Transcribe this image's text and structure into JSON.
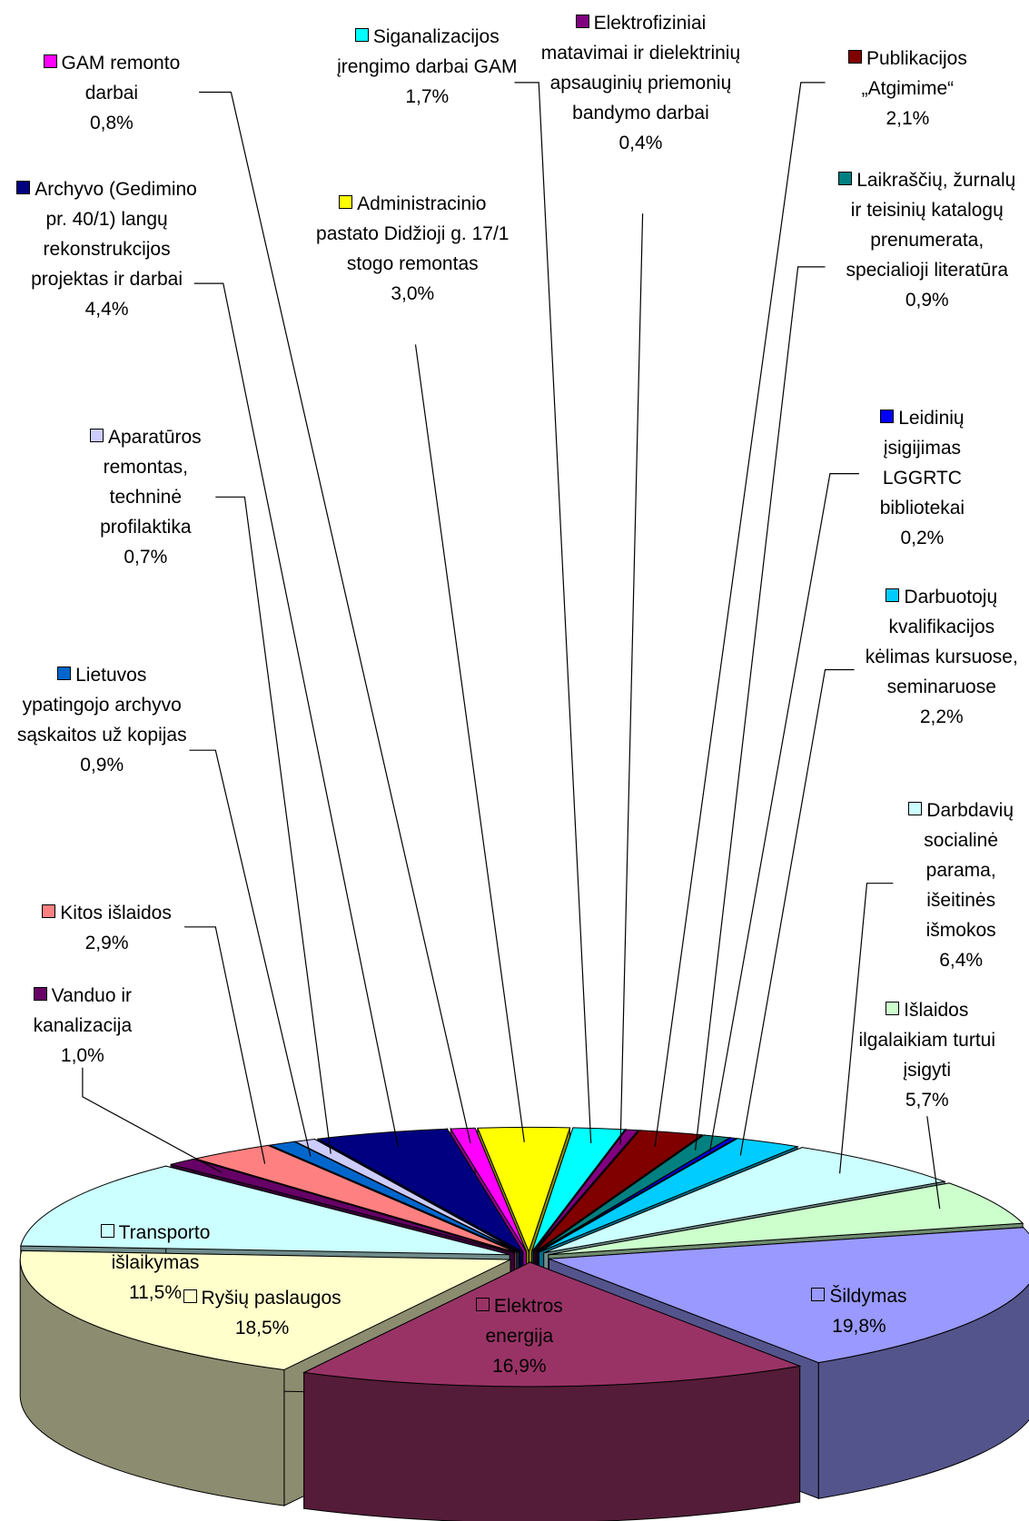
{
  "chart_data": {
    "type": "pie",
    "categories": [
      "Administracinio pastato Didžioji g. 17/1 stogo remontas",
      "Siganalizacijos įrengimo darbai GAM",
      "Elektrofiziniai matavimai ir dielektrinių apsauginių priemonių bandymo darbai",
      "Publikacijos „Atgimime“",
      "Laikraščių, žurnalų ir teisinių katalogų prenumerata, specialioji literatūra",
      "Leidinių įsigijimas LGGRTC bibliotekai",
      "Darbuotojų kvalifikacijos kėlimas kursuose, seminaruose",
      "Darbdavių socialinė parama, išeitinės išmokos",
      "Išlaidos ilgalaikiam turtui įsigyti",
      "Šildymas",
      "Elektros energija",
      "Ryšių paslaugos",
      "Transporto išlaikymas",
      "Vanduo ir kanalizacija",
      "Kitos išlaidos",
      "Lietuvos ypatingojo archyvo sąskaitos už kopijas",
      "Aparatūros remontas, techninė profilaktika",
      "Archyvo (Gedimino pr. 40/1) langų rekonstrukcijos projektas ir darbai",
      "GAM remonto darbai"
    ],
    "values": [
      3.0,
      1.7,
      0.4,
      2.1,
      0.9,
      0.2,
      2.2,
      6.4,
      5.7,
      19.8,
      16.9,
      18.5,
      11.5,
      1.0,
      2.9,
      0.9,
      0.7,
      4.4,
      0.8
    ],
    "value_labels": [
      "3,0%",
      "1,7%",
      "0,4%",
      "2,1%",
      "0,9%",
      "0,2%",
      "2,2%",
      "6,4%",
      "5,7%",
      "19,8%",
      "16,9%",
      "18,5%",
      "11,5%",
      "1,0%",
      "2,9%",
      "0,9%",
      "0,7%",
      "4,4%",
      "0,8%"
    ],
    "colors": [
      "#ffff00",
      "#00ffff",
      "#800080",
      "#800000",
      "#008080",
      "#0000ff",
      "#00ccff",
      "#ccffff",
      "#ccffcc",
      "#9999ff",
      "#993366",
      "#ffffcc",
      "#ccffff",
      "#660066",
      "#ff8080",
      "#0066cc",
      "#ccccff",
      "#000080",
      "#ff00ff"
    ]
  }
}
